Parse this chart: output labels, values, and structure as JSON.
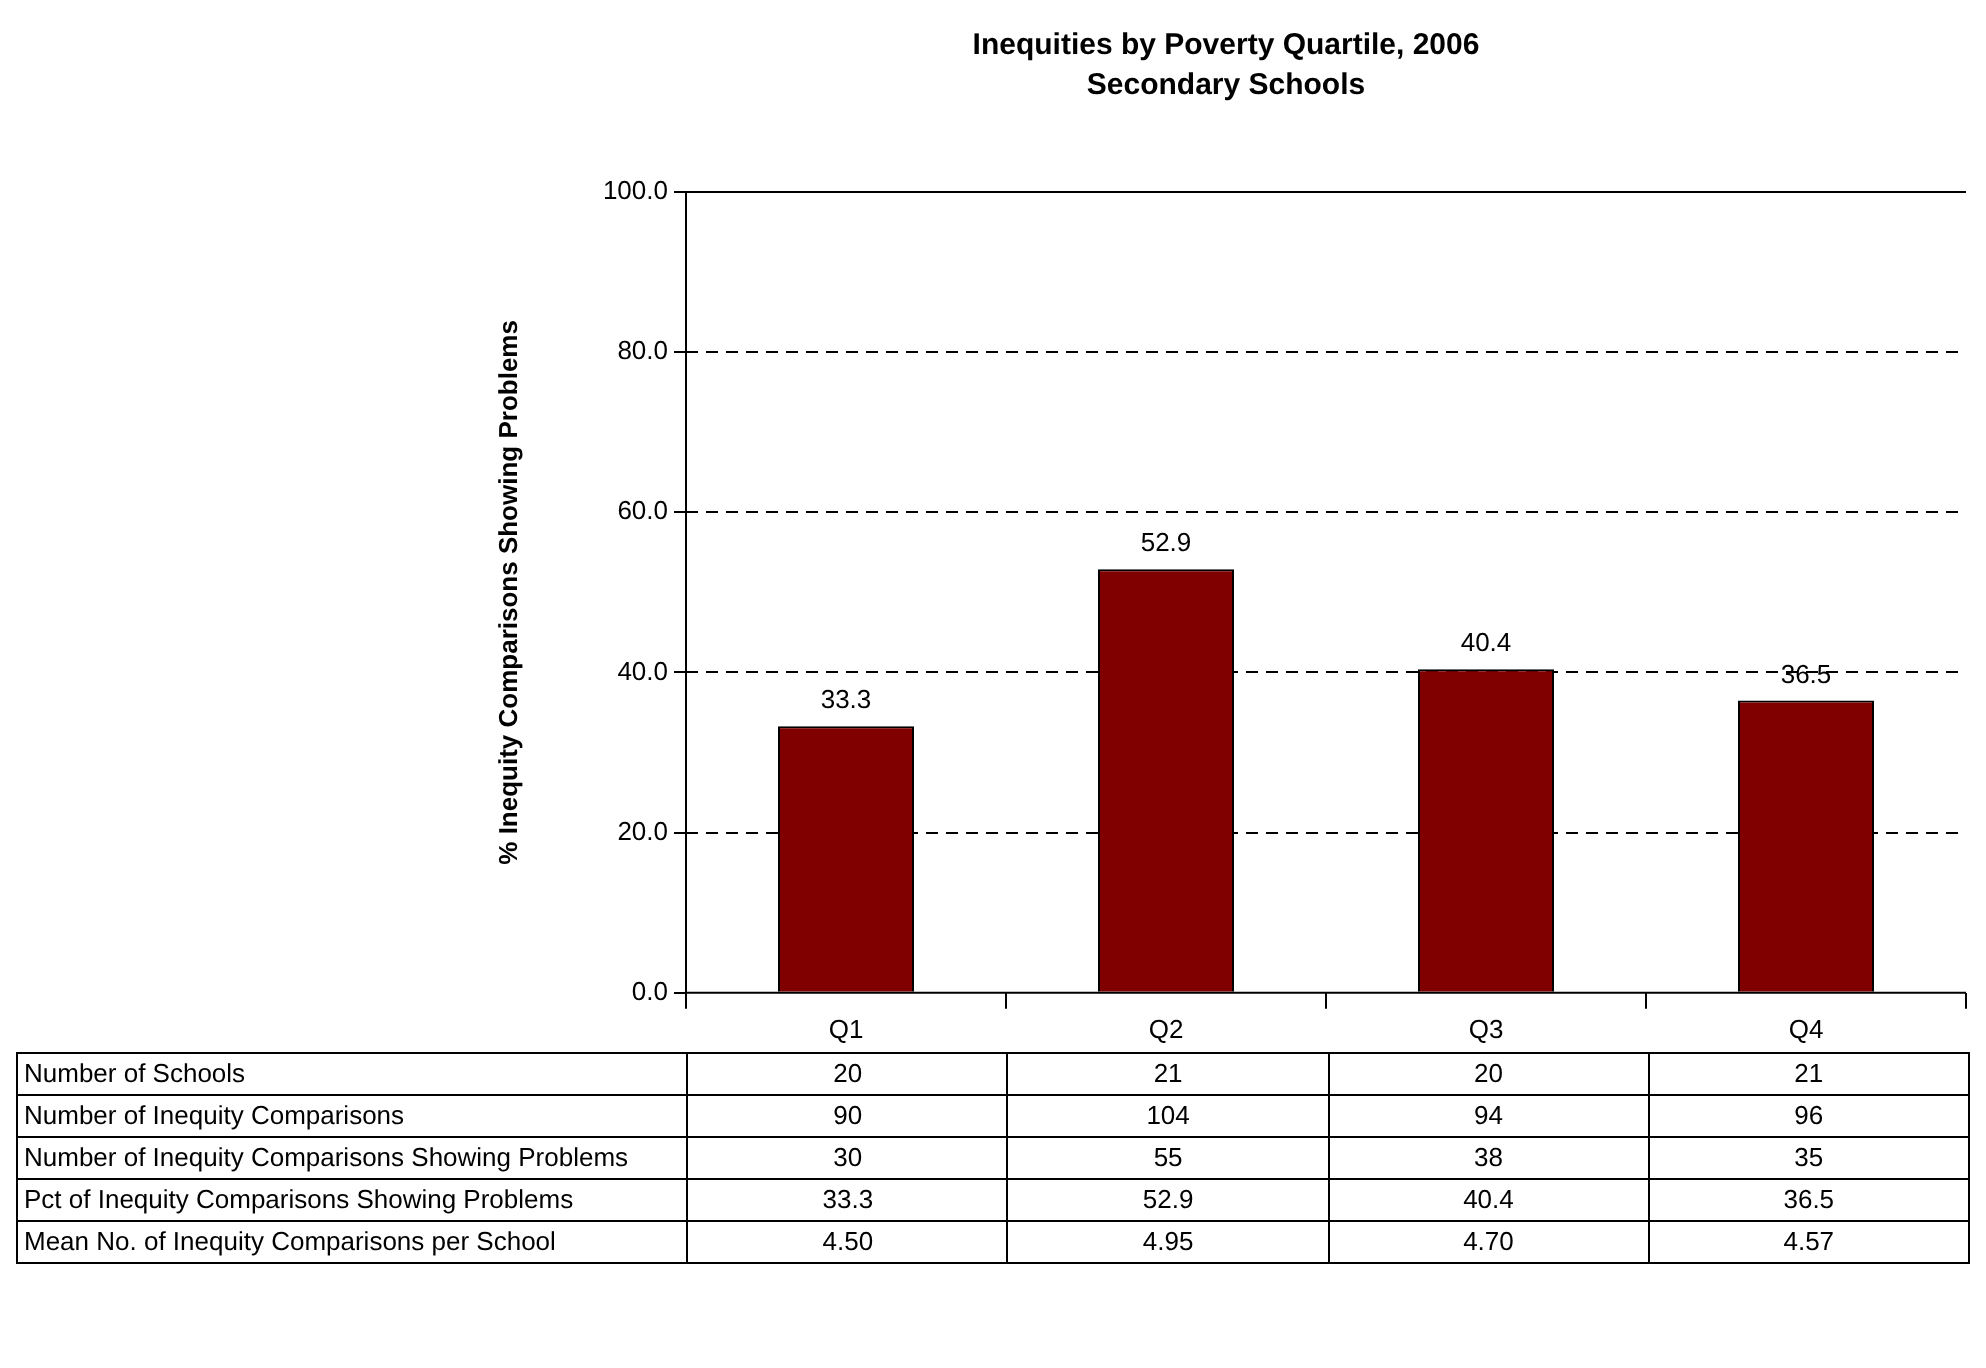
{
  "chart_data": {
    "type": "bar",
    "title": "Inequities by Poverty Quartile, 2006",
    "subtitle": "Secondary Schools",
    "ylabel": "% Inequity Comparisons Showing Problems",
    "categories": [
      "Q1",
      "Q2",
      "Q3",
      "Q4"
    ],
    "values": [
      33.3,
      52.9,
      40.4,
      36.5
    ],
    "color": "#800000",
    "ylim": [
      0,
      100
    ],
    "yticks": [
      {
        "value": 0,
        "label": "0.0"
      },
      {
        "value": 20,
        "label": "20.0"
      },
      {
        "value": 40,
        "label": "40.0"
      },
      {
        "value": 60,
        "label": "60.0"
      },
      {
        "value": 80,
        "label": "80.0"
      },
      {
        "value": 100,
        "label": "100.0"
      }
    ],
    "grid": "y",
    "data_labels": true,
    "annotations": [
      "Number of Schools",
      "20",
      "21",
      "20",
      "21",
      "Number of Inequity Comparisons",
      "90",
      "104",
      "94",
      "96",
      "Number of Inequity Comparisons Showing Problems",
      "30",
      "55",
      "38",
      "35",
      "Pct of Inequity Comparisons Showing Problems",
      "33.3",
      "52.9",
      "40.4",
      "36.5",
      "Mean No. of Inequity Comparisons per School",
      "4.50",
      "4.95",
      "4.70",
      "4.57"
    ]
  }
}
